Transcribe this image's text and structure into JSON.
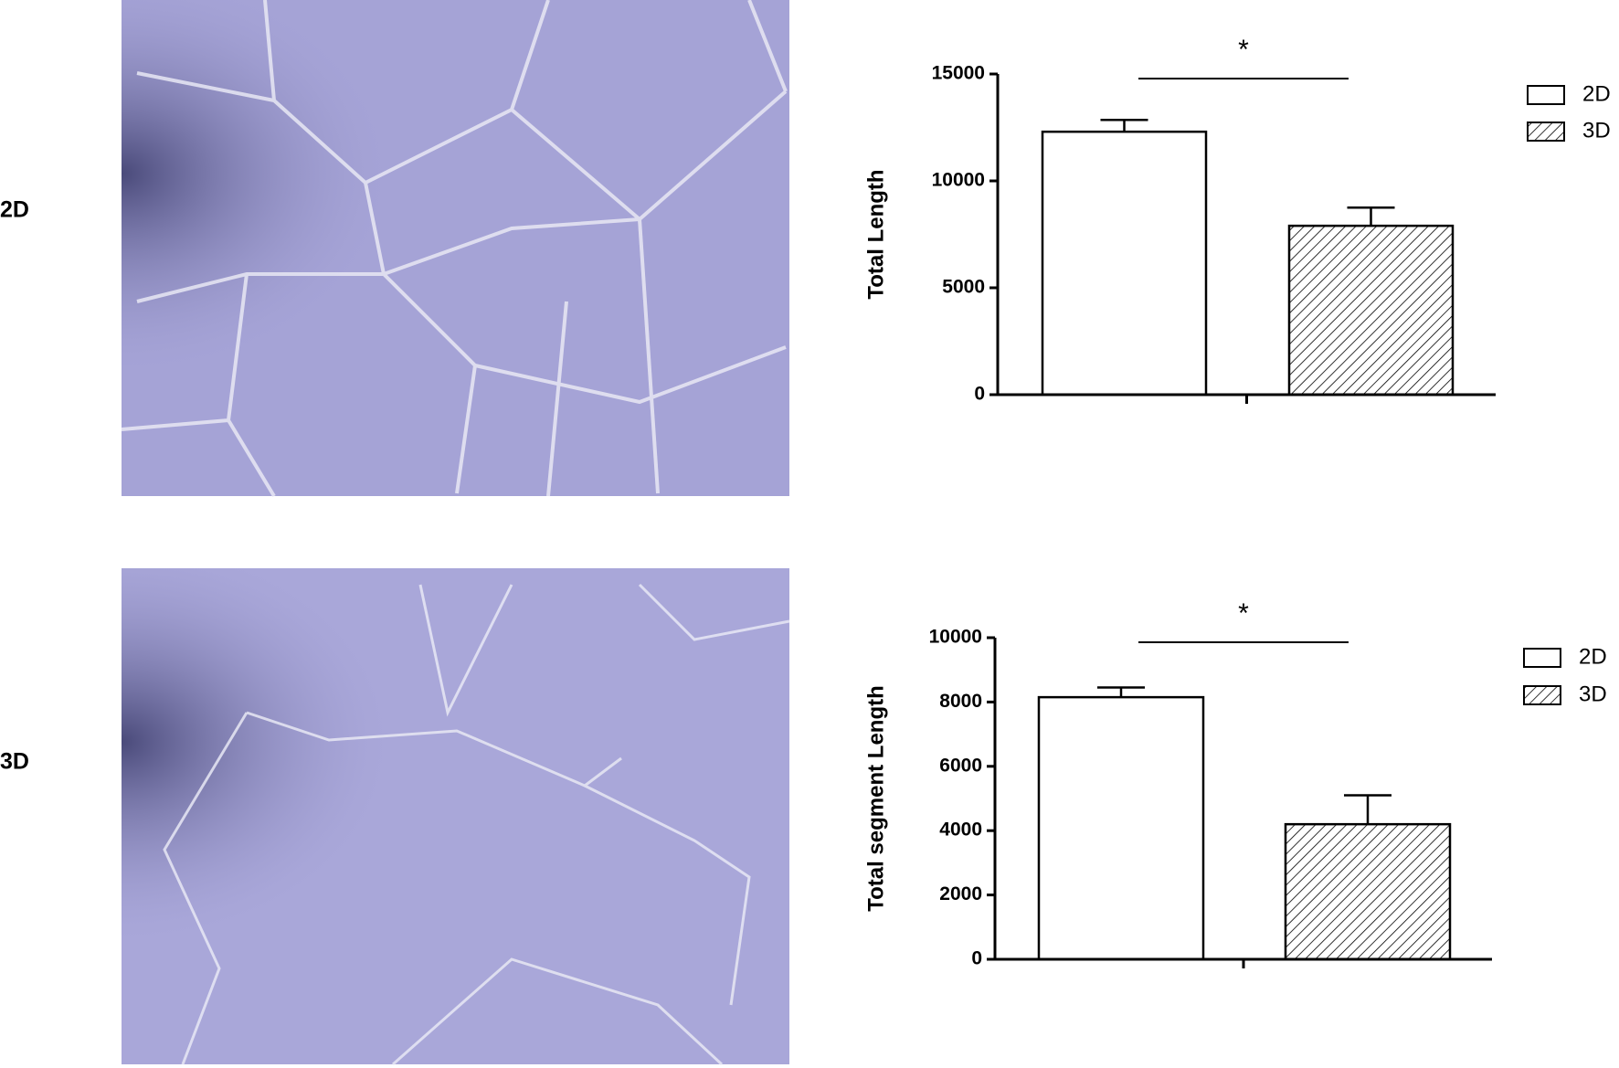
{
  "row_labels": [
    "2D",
    "3D"
  ],
  "chart_data": [
    {
      "type": "bar",
      "ylabel": "Total Length",
      "categories": [
        null
      ],
      "series": [
        {
          "name": "2D",
          "color": "#ffffff",
          "hatch": false,
          "values": [
            12300
          ],
          "errors": [
            550
          ]
        },
        {
          "name": "3D",
          "color": "#ffffff",
          "hatch": true,
          "values": [
            7900
          ],
          "errors": [
            850
          ]
        }
      ],
      "ylim": [
        0,
        15000
      ],
      "yticks": [
        0,
        5000,
        10000,
        15000
      ],
      "annotation": "*",
      "legend": "right"
    },
    {
      "type": "bar",
      "ylabel": "Total segment Length",
      "categories": [
        null
      ],
      "series": [
        {
          "name": "2D",
          "color": "#ffffff",
          "hatch": false,
          "values": [
            8150
          ],
          "errors": [
            300
          ]
        },
        {
          "name": "3D",
          "color": "#ffffff",
          "hatch": true,
          "values": [
            4200
          ],
          "errors": [
            900
          ]
        }
      ],
      "ylim": [
        0,
        10000
      ],
      "yticks": [
        0,
        2000,
        4000,
        6000,
        8000,
        10000
      ],
      "annotation": "*",
      "legend": "right"
    }
  ]
}
